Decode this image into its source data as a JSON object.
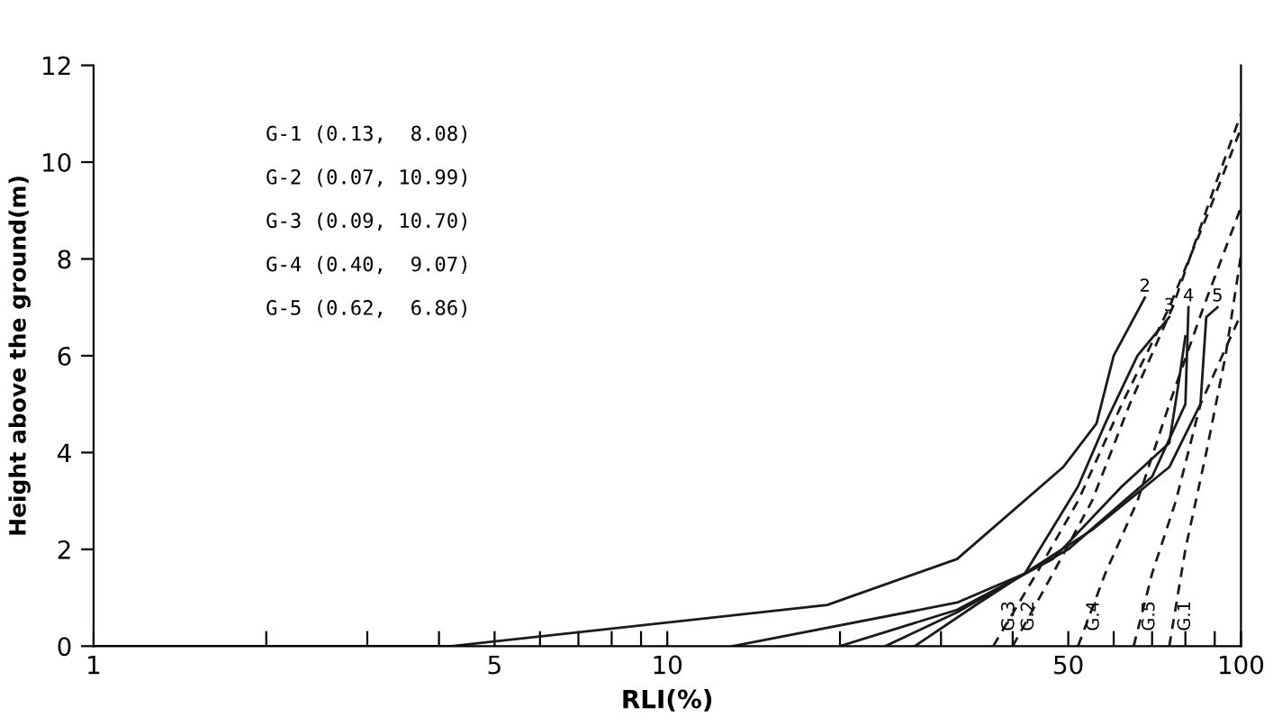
{
  "chart_data": {
    "type": "line",
    "xlabel": "RLI(%)",
    "ylabel": "Height above the ground(m)",
    "log": "x",
    "xlim": [
      1,
      100
    ],
    "ylim": [
      0,
      12
    ],
    "xticks": [
      1,
      {
        "value": 2,
        "label": null
      },
      {
        "value": 3,
        "label": null
      },
      {
        "value": 4,
        "label": null
      },
      5,
      {
        "value": 6,
        "label": null
      },
      {
        "value": 7,
        "label": null
      },
      {
        "value": 8,
        "label": null
      },
      {
        "value": 9,
        "label": null
      },
      10,
      {
        "value": 20,
        "label": null
      },
      {
        "value": 30,
        "label": null
      },
      {
        "value": 40,
        "label": null
      },
      50,
      {
        "value": 60,
        "label": null
      },
      {
        "value": 70,
        "label": null
      },
      {
        "value": 80,
        "label": null
      },
      {
        "value": 90,
        "label": null
      },
      100
    ],
    "yticks": [
      0,
      2,
      4,
      6,
      8,
      10,
      12
    ],
    "grid": false,
    "legend": false,
    "marker": "none",
    "annotations": [
      "G-1 (0.13,  8.08)",
      "G-2 (0.07, 10.99)",
      "G-3 (0.09, 10.70)",
      "G-4 (0.40,  9.07)",
      "G-5 (0.62,  6.86)"
    ],
    "series": [
      {
        "color": "#1a1a1a",
        "line_style": "solid",
        "x": [
          20,
          32,
          47,
          62,
          75,
          78,
          80
        ],
        "values": [
          0,
          0.75,
          1.8,
          3.3,
          4.2,
          5.5,
          6.4
        ]
      },
      {
        "name": "2",
        "color": "#1a1a1a",
        "line_style": "solid",
        "x": [
          1,
          4.2,
          19,
          32,
          49,
          56,
          60,
          68
        ],
        "values": [
          0,
          0,
          0.85,
          1.8,
          3.7,
          4.6,
          6.0,
          7.2
        ]
      },
      {
        "name": "3",
        "color": "#1a1a1a",
        "line_style": "solid",
        "x": [
          13,
          32,
          42,
          52,
          58,
          66,
          75
        ],
        "values": [
          0,
          0.9,
          1.5,
          3.3,
          4.6,
          6.0,
          6.8
        ]
      },
      {
        "name": "4",
        "color": "#1a1a1a",
        "line_style": "solid",
        "x": [
          24,
          32,
          50,
          70,
          80,
          81
        ],
        "values": [
          0,
          0.7,
          2.0,
          3.5,
          5.0,
          7.0
        ]
      },
      {
        "name": "5",
        "color": "#1a1a1a",
        "line_style": "solid",
        "x": [
          27,
          35,
          55,
          75,
          85,
          87,
          91
        ],
        "values": [
          0,
          0.9,
          2.4,
          3.7,
          5.0,
          6.8,
          7.0
        ]
      },
      {
        "name": "G.1",
        "color": "#1a1a1a",
        "line_style": "dashed",
        "x": [
          75,
          80,
          87,
          94,
          100
        ],
        "values": [
          0,
          2,
          4,
          6,
          8.08
        ]
      },
      {
        "name": "G.2",
        "color": "#1a1a1a",
        "line_style": "dashed",
        "x": [
          40,
          47,
          55,
          64,
          76,
          90,
          100
        ],
        "values": [
          0,
          1.5,
          3,
          5,
          7,
          9.5,
          10.99
        ]
      },
      {
        "name": "G.3",
        "color": "#1a1a1a",
        "line_style": "dashed",
        "x": [
          37,
          44,
          52,
          62,
          75,
          88,
          100
        ],
        "values": [
          0,
          1.5,
          3,
          5,
          7,
          9,
          10.7
        ]
      },
      {
        "name": "G.4",
        "color": "#1a1a1a",
        "line_style": "dashed",
        "x": [
          52,
          58,
          66,
          75,
          86,
          100
        ],
        "values": [
          0,
          1.5,
          3,
          5,
          7,
          9.07
        ]
      },
      {
        "name": "G.5",
        "color": "#1a1a1a",
        "line_style": "dashed",
        "x": [
          65,
          70,
          77,
          85,
          100
        ],
        "values": [
          0,
          1.5,
          3,
          5,
          6.86
        ]
      }
    ]
  }
}
